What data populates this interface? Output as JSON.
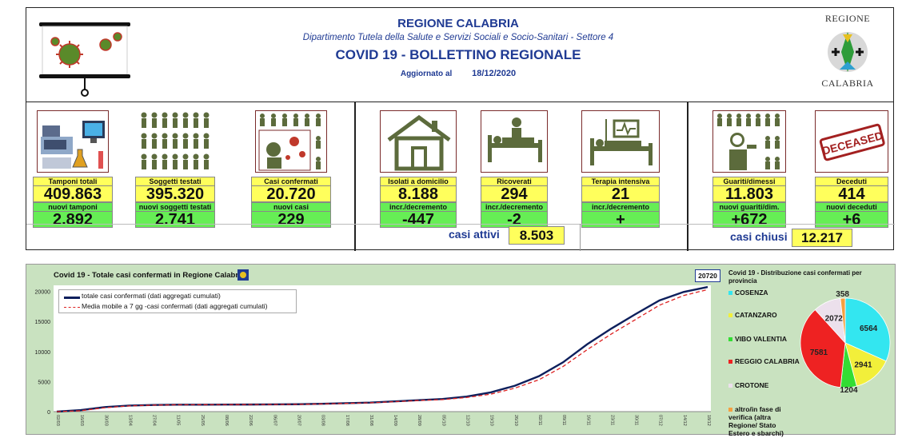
{
  "header": {
    "region": "REGIONE CALABRIA",
    "department": "Dipartimento Tutela della Salute e Servizi Sociali e Socio-Sanitari - Settore 4",
    "bulletin": "COVID 19 - BOLLETTINO REGIONALE",
    "updated_label": "Aggiornato al",
    "updated_date": "18/12/2020",
    "logo_right_top": "REGIONE",
    "logo_right_bottom": "CALABRIA"
  },
  "stats": {
    "tamponi": {
      "label": "Tamponi totali",
      "value": "409.863",
      "new_label": "nuovi tamponi",
      "new_value": "2.892"
    },
    "soggetti": {
      "label": "Soggetti testati",
      "value": "395.320",
      "new_label": "nuovi soggetti testati",
      "new_value": "2.741"
    },
    "casi": {
      "label": "Casi confermati",
      "value": "20.720",
      "new_label": "nuovi casi",
      "new_value": "229"
    },
    "isolati": {
      "label": "Isolati a domicilio",
      "value": "8.188",
      "new_label": "incr./decremento",
      "new_value": "-447"
    },
    "ricoverati": {
      "label": "Ricoverati",
      "value": "294",
      "new_label": "incr./decremento",
      "new_value": "-2"
    },
    "terapia": {
      "label": "Terapia intensiva",
      "value": "21",
      "new_label": "incr./decremento",
      "new_value": "+"
    },
    "guariti": {
      "label": "Guariti/dimessi",
      "value": "11.803",
      "new_label": "nuovi guariti/dim.",
      "new_value": "+672"
    },
    "deceduti": {
      "label": "Deceduti",
      "value": "414",
      "new_label": "nuovi deceduti",
      "new_value": "+6"
    }
  },
  "casi_attivi": {
    "label": "casi attivi",
    "value": "8.503"
  },
  "casi_chiusi": {
    "label": "casi chiusi",
    "value": "12.217"
  },
  "deceased_stamp": "DECEASED",
  "colors": {
    "title_blue": "#1f3a93",
    "yellow": "#ffff5c",
    "green": "#66ee55",
    "chart_bg": "#c9e2c0"
  },
  "chart_data": [
    {
      "type": "line",
      "title": "Covid 19 - Totale casi confermati in Regione Calabria",
      "badge": "20720",
      "xlabel": "",
      "ylabel": "",
      "ylim": [
        0,
        21000
      ],
      "yticks": [
        0,
        5000,
        10000,
        15000,
        20000
      ],
      "grid": false,
      "legend": "top-left",
      "x": [
        "02/03",
        "16/03",
        "30/03",
        "13/04",
        "27/04",
        "11/05",
        "25/05",
        "08/06",
        "22/06",
        "06/07",
        "20/07",
        "03/08",
        "17/08",
        "31/08",
        "14/09",
        "28/09",
        "05/10",
        "12/10",
        "19/10",
        "26/10",
        "02/11",
        "09/11",
        "16/11",
        "23/11",
        "30/11",
        "07/12",
        "14/12",
        "18/12"
      ],
      "series": [
        {
          "name": "totale casi confermati (dati aggregati cumulati)",
          "color": "#0d1f5c",
          "values": [
            1,
            250,
            750,
            1000,
            1100,
            1150,
            1160,
            1170,
            1180,
            1200,
            1230,
            1300,
            1400,
            1500,
            1700,
            1900,
            2100,
            2500,
            3200,
            4300,
            5900,
            8200,
            11200,
            13800,
            16200,
            18500,
            19900,
            20720
          ]
        },
        {
          "name": "Media mobile a 7 gg -casi confermati (dati aggregati cumulati)",
          "color": "#dd2222",
          "values": [
            1,
            150,
            650,
            950,
            1080,
            1140,
            1155,
            1165,
            1175,
            1190,
            1220,
            1280,
            1370,
            1470,
            1650,
            1850,
            2000,
            2350,
            2900,
            3900,
            5300,
            7500,
            10300,
            12900,
            15300,
            17700,
            19300,
            20300
          ]
        }
      ]
    },
    {
      "type": "pie",
      "title": "Covid 19 - Distribuzione casi confermati per provincia",
      "legend": "left",
      "categories": [
        "COSENZA",
        "CATANZARO",
        "VIBO VALENTIA",
        "REGGIO CALABRIA",
        "CROTONE",
        "altro/in fase di verifica (altra Regione/ Stato Estero e sbarchi)"
      ],
      "values": [
        6564,
        2941,
        1204,
        7581,
        2072,
        358
      ],
      "colors": [
        "#33e6f0",
        "#f2ef3a",
        "#33dd33",
        "#ee2222",
        "#ece0ec",
        "#f5a040"
      ]
    }
  ]
}
